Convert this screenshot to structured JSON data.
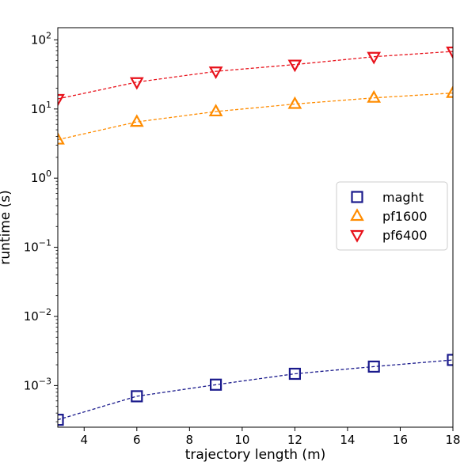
{
  "chart_data": {
    "type": "line",
    "xlabel": "trajectory length (m)",
    "ylabel": "runtime (s)",
    "x_ticks": [
      4,
      6,
      8,
      10,
      12,
      14,
      16,
      18
    ],
    "xlim": [
      3,
      18
    ],
    "ylog": true,
    "ylim": [
      0.00025,
      150
    ],
    "y_ticks": [
      {
        "value": 0.001,
        "base": "10",
        "exp": "−3"
      },
      {
        "value": 0.01,
        "base": "10",
        "exp": "−2"
      },
      {
        "value": 0.1,
        "base": "10",
        "exp": "−1"
      },
      {
        "value": 1,
        "base": "10",
        "exp": "0"
      },
      {
        "value": 10,
        "base": "10",
        "exp": "1"
      },
      {
        "value": 100,
        "base": "10",
        "exp": "2"
      }
    ],
    "grid": false,
    "legend_position": "center-right",
    "series": [
      {
        "name": "maght",
        "color": "#1a1a8c",
        "marker": "square",
        "x": [
          3,
          6,
          9,
          12,
          15,
          18
        ],
        "values": [
          0.00032,
          0.0007,
          0.00103,
          0.00148,
          0.00188,
          0.00235
        ]
      },
      {
        "name": "pf1600",
        "color": "#ff8c00",
        "marker": "triangle-up",
        "x": [
          3,
          6,
          9,
          12,
          15,
          18
        ],
        "values": [
          3.6,
          6.5,
          9.2,
          11.8,
          14.5,
          17.0
        ]
      },
      {
        "name": "pf6400",
        "color": "#e8121b",
        "marker": "triangle-down",
        "x": [
          3,
          6,
          9,
          12,
          15,
          18
        ],
        "values": [
          14.0,
          24.5,
          35.0,
          44.0,
          57.0,
          68.0
        ]
      }
    ]
  }
}
